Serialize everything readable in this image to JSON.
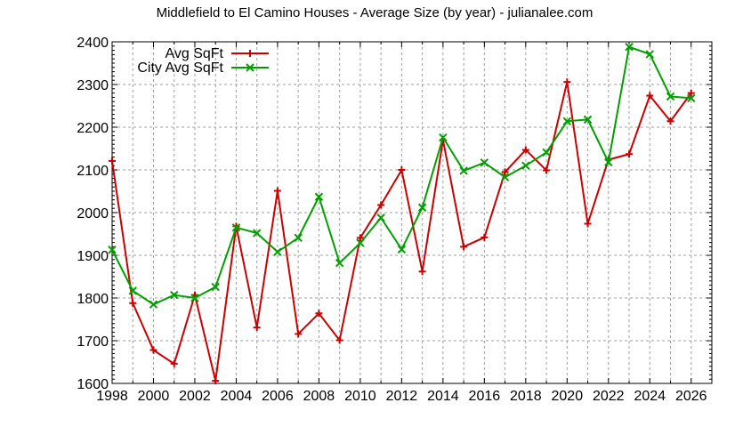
{
  "chart_data": {
    "type": "line",
    "title": "Middlefield to El Camino Houses - Average Size (by year) - julianalee.com",
    "xlabel": "",
    "ylabel": "",
    "xlim": [
      1998,
      2027
    ],
    "ylim": [
      1600,
      2400
    ],
    "grid": true,
    "legend_position": "top-left (inside)",
    "x_ticks": [
      1998,
      2000,
      2002,
      2004,
      2006,
      2008,
      2010,
      2012,
      2014,
      2016,
      2018,
      2020,
      2022,
      2024,
      2026
    ],
    "y_ticks": [
      1600,
      1700,
      1800,
      1900,
      2000,
      2100,
      2200,
      2300,
      2400
    ],
    "x": [
      1998,
      1999,
      2000,
      2001,
      2002,
      2003,
      2004,
      2005,
      2006,
      2007,
      2008,
      2009,
      2010,
      2011,
      2012,
      2013,
      2014,
      2015,
      2016,
      2017,
      2018,
      2019,
      2020,
      2021,
      2022,
      2023,
      2024,
      2025,
      2026
    ],
    "series": [
      {
        "name": "Avg SqFt",
        "color": "#cc0000",
        "marker": "plus",
        "values": [
          2121,
          1788,
          1678,
          1646,
          1807,
          1606,
          1968,
          1731,
          2051,
          1716,
          1764,
          1701,
          1941,
          2018,
          2100,
          1862,
          2170,
          1920,
          1942,
          2095,
          2147,
          2099,
          2306,
          1974,
          2124,
          2137,
          2274,
          2214,
          2280
        ]
      },
      {
        "name": "City Avg SqFt",
        "color": "#00a000",
        "marker": "x",
        "values": [
          1913,
          1817,
          1785,
          1807,
          1800,
          1826,
          1965,
          1952,
          1908,
          1941,
          2037,
          1882,
          1929,
          1988,
          1914,
          2012,
          2176,
          2098,
          2117,
          2083,
          2110,
          2141,
          2214,
          2218,
          2118,
          2388,
          2371,
          2272,
          2268
        ]
      }
    ]
  }
}
